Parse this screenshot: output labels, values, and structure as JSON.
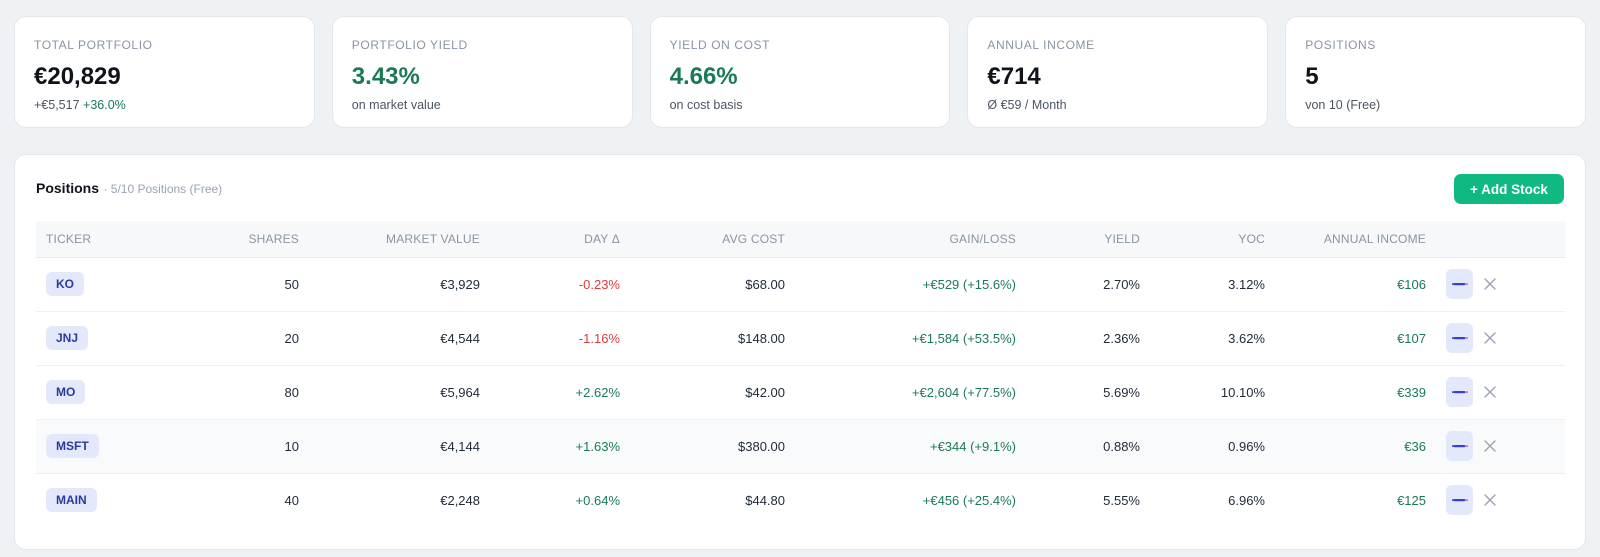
{
  "stats": [
    {
      "label": "TOTAL PORTFOLIO",
      "value": "€20,829",
      "sub_prefix": "+€5,517",
      "sub_highlight": "+36.0%",
      "green": false
    },
    {
      "label": "PORTFOLIO YIELD",
      "value": "3.43%",
      "sub_prefix": "on market value",
      "sub_highlight": "",
      "green": true
    },
    {
      "label": "YIELD ON COST",
      "value": "4.66%",
      "sub_prefix": "on cost basis",
      "sub_highlight": "",
      "green": true
    },
    {
      "label": "ANNUAL INCOME",
      "value": "€714",
      "sub_prefix": "Ø €59 / Month",
      "sub_highlight": "",
      "green": false
    },
    {
      "label": "POSITIONS",
      "value": "5",
      "sub_prefix": "von 10 (Free)",
      "sub_highlight": "",
      "green": false
    }
  ],
  "panel": {
    "title": "Positions",
    "subtitle": "· 5/10 Positions (Free)",
    "add_label": "+ Add Stock"
  },
  "table": {
    "columns": [
      "TICKER",
      "SHARES",
      "MARKET VALUE",
      "DAY Δ",
      "AVG COST",
      "GAIN/LOSS",
      "YIELD",
      "YOC",
      "ANNUAL INCOME"
    ],
    "rows": [
      {
        "ticker": "KO",
        "shares": "50",
        "market_value": "€3,929",
        "day": "-0.23%",
        "day_dir": "neg",
        "avg_cost": "$68.00",
        "gain": "+€529 (+15.6%)",
        "yield": "2.70%",
        "yoc": "3.12%",
        "income": "€106"
      },
      {
        "ticker": "JNJ",
        "shares": "20",
        "market_value": "€4,544",
        "day": "-1.16%",
        "day_dir": "neg",
        "avg_cost": "$148.00",
        "gain": "+€1,584 (+53.5%)",
        "yield": "2.36%",
        "yoc": "3.62%",
        "income": "€107"
      },
      {
        "ticker": "MO",
        "shares": "80",
        "market_value": "€5,964",
        "day": "+2.62%",
        "day_dir": "pos",
        "avg_cost": "$42.00",
        "gain": "+€2,604 (+77.5%)",
        "yield": "5.69%",
        "yoc": "10.10%",
        "income": "€339"
      },
      {
        "ticker": "MSFT",
        "shares": "10",
        "market_value": "€4,144",
        "day": "+1.63%",
        "day_dir": "pos",
        "avg_cost": "$380.00",
        "gain": "+€344 (+9.1%)",
        "yield": "0.88%",
        "yoc": "0.96%",
        "income": "€36"
      },
      {
        "ticker": "MAIN",
        "shares": "40",
        "market_value": "€2,248",
        "day": "+0.64%",
        "day_dir": "pos",
        "avg_cost": "$44.80",
        "gain": "+€456 (+25.4%)",
        "yield": "5.55%",
        "yoc": "6.96%",
        "income": "€125"
      }
    ],
    "row_actions": {
      "edit_icon": "pencil-icon",
      "delete_icon": "close-icon"
    }
  },
  "colors": {
    "accent": "#10b981",
    "positive": "#1a7a54",
    "negative": "#dc3b3b",
    "ticker_bg": "#e3e8fb",
    "ticker_text": "#2b3a9e"
  }
}
